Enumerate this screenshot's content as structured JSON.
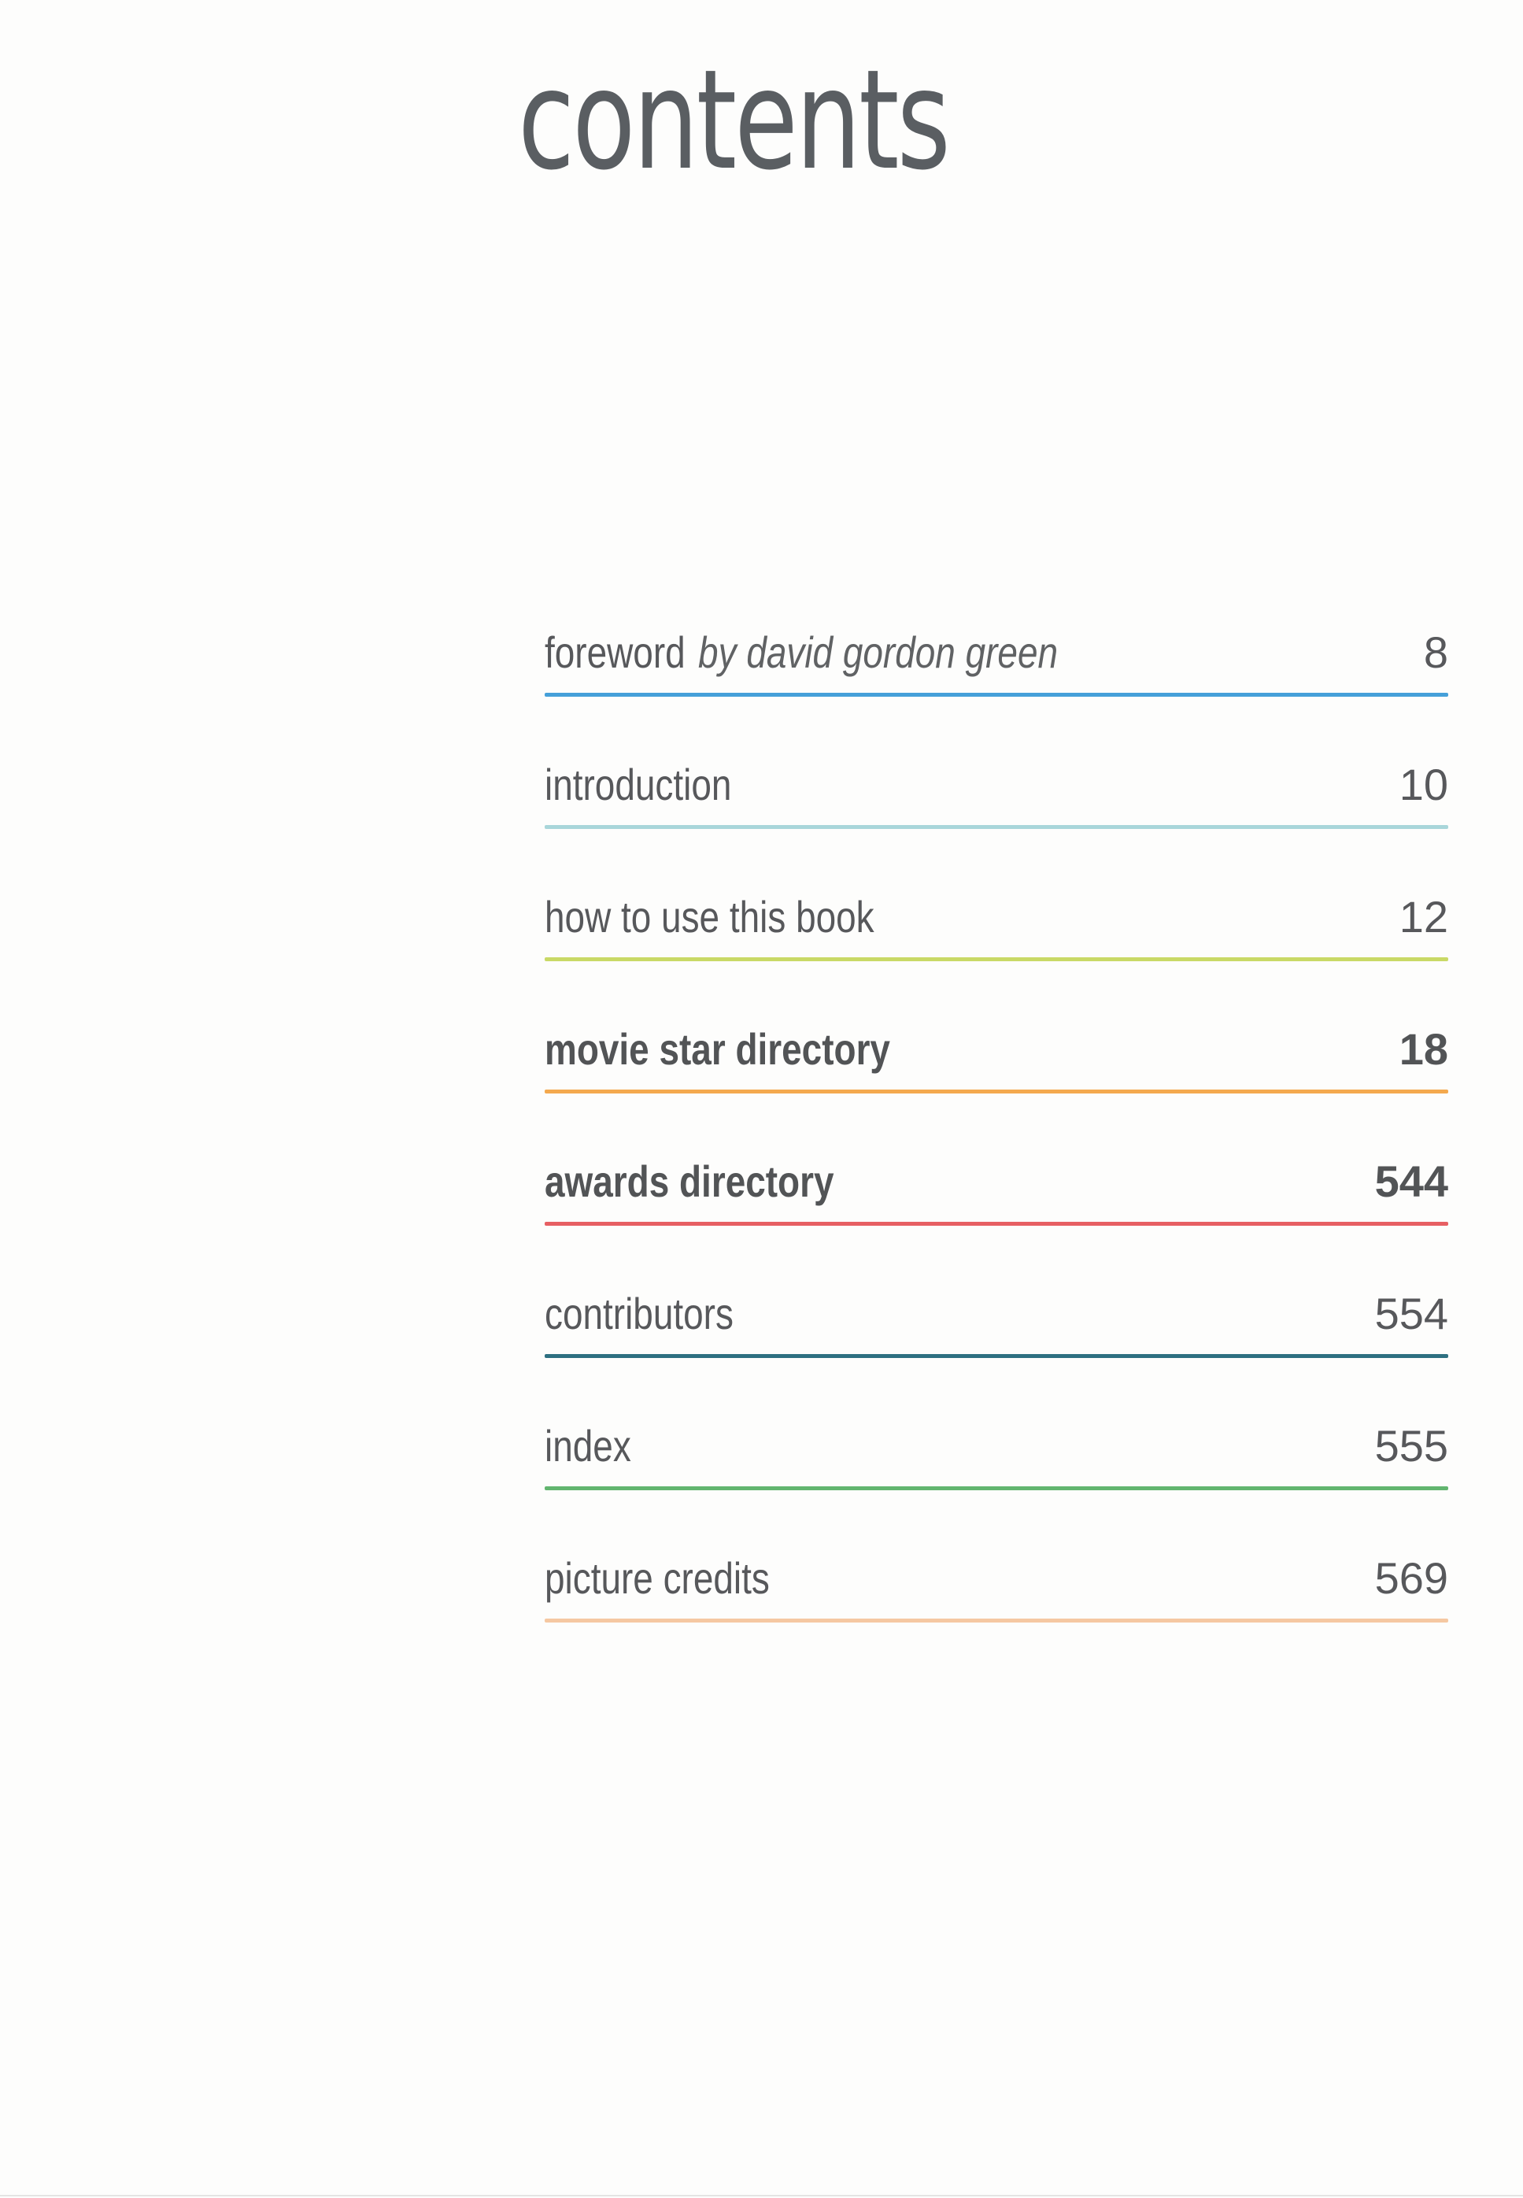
{
  "toc": {
    "title": "contents",
    "entries": [
      {
        "label": "foreword",
        "suffix": "by david gordon green",
        "page": "8",
        "bold": false,
        "line_color": "#45a0d9"
      },
      {
        "label": "introduction",
        "page": "10",
        "bold": false,
        "line_color": "#a9d6da"
      },
      {
        "label": "how to use this book",
        "page": "12",
        "bold": false,
        "line_color": "#c9d966"
      },
      {
        "label": "movie star directory",
        "page": "18",
        "bold": true,
        "line_color": "#f4a94e"
      },
      {
        "label": "awards directory",
        "page": "544",
        "bold": true,
        "line_color": "#e75f63"
      },
      {
        "label": "contributors",
        "page": "554",
        "bold": false,
        "line_color": "#2e7081"
      },
      {
        "label": "index",
        "page": "555",
        "bold": false,
        "line_color": "#62b56f"
      },
      {
        "label": "picture credits",
        "page": "569",
        "bold": false,
        "line_color": "#f5c8a2"
      }
    ]
  }
}
